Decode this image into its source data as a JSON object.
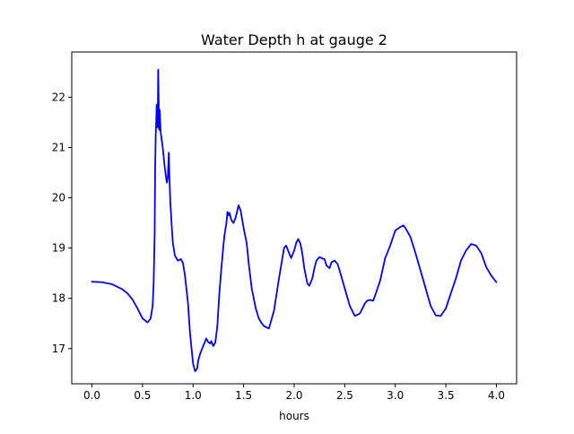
{
  "chart_data": {
    "type": "line",
    "title": "Water Depth h at gauge 2",
    "xlabel": "hours",
    "ylabel": "",
    "xlim": [
      -0.2,
      4.2
    ],
    "ylim": [
      16.3,
      22.9
    ],
    "xticks": [
      0.0,
      0.5,
      1.0,
      1.5,
      2.0,
      2.5,
      3.0,
      3.5,
      4.0
    ],
    "xtick_labels": [
      "0.0",
      "0.5",
      "1.0",
      "1.5",
      "2.0",
      "2.5",
      "3.0",
      "3.5",
      "4.0"
    ],
    "yticks": [
      17,
      18,
      19,
      20,
      21,
      22
    ],
    "ytick_labels": [
      "17",
      "18",
      "19",
      "20",
      "21",
      "22"
    ],
    "grid": false,
    "legend": "none",
    "series": [
      {
        "color": "#0000ff",
        "x": [
          0.0,
          0.1,
          0.2,
          0.3,
          0.35,
          0.4,
          0.45,
          0.5,
          0.55,
          0.58,
          0.6,
          0.61,
          0.62,
          0.625,
          0.63,
          0.635,
          0.64,
          0.645,
          0.65,
          0.655,
          0.66,
          0.665,
          0.67,
          0.675,
          0.68,
          0.7,
          0.72,
          0.74,
          0.75,
          0.76,
          0.765,
          0.77,
          0.775,
          0.78,
          0.79,
          0.8,
          0.82,
          0.85,
          0.88,
          0.9,
          0.92,
          0.95,
          0.97,
          1.0,
          1.02,
          1.04,
          1.05,
          1.07,
          1.1,
          1.13,
          1.15,
          1.17,
          1.18,
          1.2,
          1.22,
          1.24,
          1.26,
          1.28,
          1.3,
          1.31,
          1.33,
          1.34,
          1.35,
          1.36,
          1.38,
          1.4,
          1.42,
          1.45,
          1.47,
          1.5,
          1.53,
          1.55,
          1.58,
          1.62,
          1.65,
          1.68,
          1.7,
          1.75,
          1.8,
          1.85,
          1.9,
          1.92,
          1.95,
          1.97,
          2.0,
          2.02,
          2.04,
          2.06,
          2.08,
          2.1,
          2.13,
          2.15,
          2.18,
          2.2,
          2.22,
          2.25,
          2.27,
          2.3,
          2.32,
          2.35,
          2.37,
          2.4,
          2.43,
          2.45,
          2.5,
          2.55,
          2.6,
          2.65,
          2.7,
          2.72,
          2.75,
          2.78,
          2.8,
          2.85,
          2.9,
          2.95,
          3.0,
          3.05,
          3.08,
          3.1,
          3.15,
          3.2,
          3.25,
          3.3,
          3.35,
          3.4,
          3.45,
          3.5,
          3.55,
          3.6,
          3.65,
          3.7,
          3.75,
          3.8,
          3.85,
          3.9,
          3.95,
          4.0
        ],
        "y": [
          18.33,
          18.32,
          18.28,
          18.18,
          18.1,
          17.98,
          17.8,
          17.6,
          17.52,
          17.6,
          17.85,
          18.3,
          19.3,
          20.6,
          21.2,
          21.5,
          21.85,
          21.6,
          21.4,
          22.55,
          21.9,
          21.35,
          21.75,
          21.5,
          21.3,
          21.0,
          20.6,
          20.3,
          20.4,
          20.9,
          20.5,
          20.2,
          19.9,
          19.75,
          19.4,
          19.1,
          18.85,
          18.75,
          18.78,
          18.7,
          18.45,
          17.9,
          17.3,
          16.7,
          16.55,
          16.6,
          16.75,
          16.9,
          17.05,
          17.2,
          17.13,
          17.1,
          17.15,
          17.05,
          17.12,
          17.45,
          18.1,
          18.6,
          19.05,
          19.25,
          19.5,
          19.72,
          19.65,
          19.7,
          19.55,
          19.5,
          19.6,
          19.85,
          19.75,
          19.4,
          19.1,
          18.7,
          18.2,
          17.8,
          17.6,
          17.5,
          17.45,
          17.4,
          17.75,
          18.4,
          19.0,
          19.05,
          18.9,
          18.8,
          18.95,
          19.1,
          19.18,
          19.1,
          18.9,
          18.6,
          18.3,
          18.25,
          18.4,
          18.6,
          18.75,
          18.82,
          18.8,
          18.78,
          18.65,
          18.6,
          18.72,
          18.75,
          18.68,
          18.55,
          18.2,
          17.85,
          17.65,
          17.7,
          17.9,
          17.95,
          17.97,
          17.95,
          18.05,
          18.35,
          18.8,
          19.05,
          19.35,
          19.42,
          19.45,
          19.4,
          19.22,
          18.9,
          18.55,
          18.2,
          17.85,
          17.66,
          17.65,
          17.8,
          18.1,
          18.4,
          18.75,
          18.95,
          19.08,
          19.05,
          18.9,
          18.62,
          18.45,
          18.32
        ]
      }
    ]
  }
}
